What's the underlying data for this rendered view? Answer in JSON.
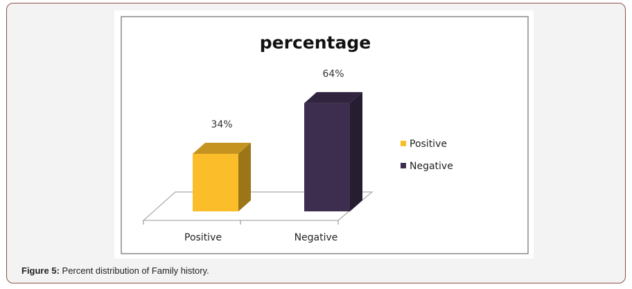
{
  "figure": {
    "caption_label": "Figure 5:",
    "caption_text": " Percent distribution of Family history."
  },
  "chart_data": {
    "type": "bar",
    "title": "percentage",
    "categories": [
      "Positive",
      "Negative"
    ],
    "values": [
      34,
      64
    ],
    "data_labels": [
      "34%",
      "64%"
    ],
    "series_colors": [
      "#fbbd29",
      "#3d2e4f"
    ],
    "legend": [
      "Positive",
      "Negative"
    ],
    "legend_position": "right",
    "style": "3d-column",
    "grid": false
  }
}
